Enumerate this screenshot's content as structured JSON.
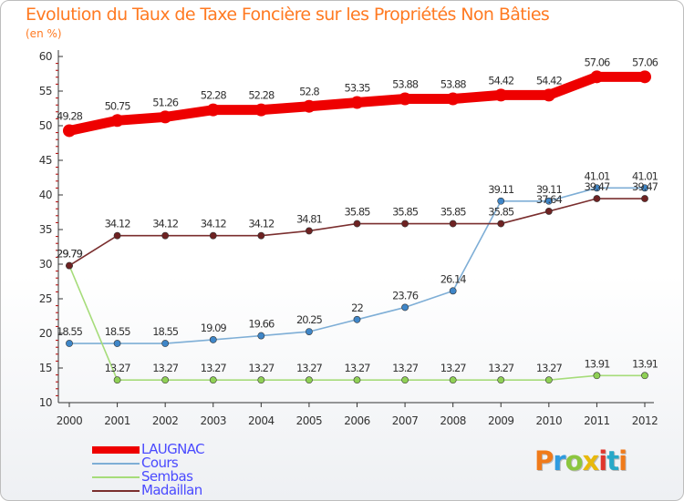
{
  "chart_data": {
    "type": "line",
    "title": "Evolution du Taux de Taxe Foncière sur les Propriétés Non Bâties",
    "unit_label": "(en %)",
    "x": [
      "2000",
      "2001",
      "2002",
      "2003",
      "2004",
      "2005",
      "2006",
      "2007",
      "2008",
      "2009",
      "2010",
      "2011",
      "2012"
    ],
    "ylim": [
      10,
      60
    ],
    "yticks": [
      "10",
      "15",
      "20",
      "25",
      "30",
      "35",
      "40",
      "45",
      "50",
      "55",
      "60"
    ],
    "grid": false,
    "legend_position": "bottom-left",
    "series": [
      {
        "name": "LAUGNAC",
        "color": "#ee0000",
        "emphasis": true,
        "values": [
          49.28,
          50.75,
          51.26,
          52.28,
          52.28,
          52.8,
          53.35,
          53.88,
          53.88,
          54.42,
          54.42,
          57.06,
          57.06
        ],
        "labels": [
          "49.28",
          "50.75",
          "51.26",
          "52.28",
          "52.28",
          "52.8",
          "53.35",
          "53.88",
          "53.88",
          "54.42",
          "54.42",
          "57.06",
          "57.06"
        ]
      },
      {
        "name": "Cours",
        "color": "#7eaed6",
        "marker": "#3f86c8",
        "values": [
          18.55,
          18.55,
          18.55,
          19.09,
          19.66,
          20.25,
          22,
          23.76,
          26.14,
          39.11,
          39.11,
          41.01,
          41.01
        ],
        "labels": [
          "18.55",
          "18.55",
          "18.55",
          "19.09",
          "19.66",
          "20.25",
          "22",
          "23.76",
          "26.14",
          "39.11",
          "39.11",
          "41.01",
          "41.01"
        ]
      },
      {
        "name": "Sembas",
        "color": "#a6dc7a",
        "marker": "#8fd055",
        "values": [
          29.79,
          13.27,
          13.27,
          13.27,
          13.27,
          13.27,
          13.27,
          13.27,
          13.27,
          13.27,
          13.27,
          13.91,
          13.91
        ],
        "labels": [
          "29.79",
          "13.27",
          "13.27",
          "13.27",
          "13.27",
          "13.27",
          "13.27",
          "13.27",
          "13.27",
          "13.27",
          "13.27",
          "13.91",
          "13.91"
        ]
      },
      {
        "name": "Madaillan",
        "color": "#7a2e2e",
        "marker": "#6e2222",
        "values": [
          29.79,
          34.12,
          34.12,
          34.12,
          34.12,
          34.81,
          35.85,
          35.85,
          35.85,
          35.85,
          37.64,
          39.47,
          39.47
        ],
        "labels": [
          "29.79",
          "34.12",
          "34.12",
          "34.12",
          "34.12",
          "34.81",
          "35.85",
          "35.85",
          "35.85",
          "35.85",
          "37.64",
          "39.47",
          "39.47"
        ]
      }
    ]
  },
  "branding": {
    "logo_text": "Proxiti",
    "logo_colors": [
      "#f07a1a",
      "#2f9be0",
      "#8cc63f",
      "#e8b90c",
      "#e0362c",
      "#27a8c8",
      "#f07a1a"
    ]
  }
}
